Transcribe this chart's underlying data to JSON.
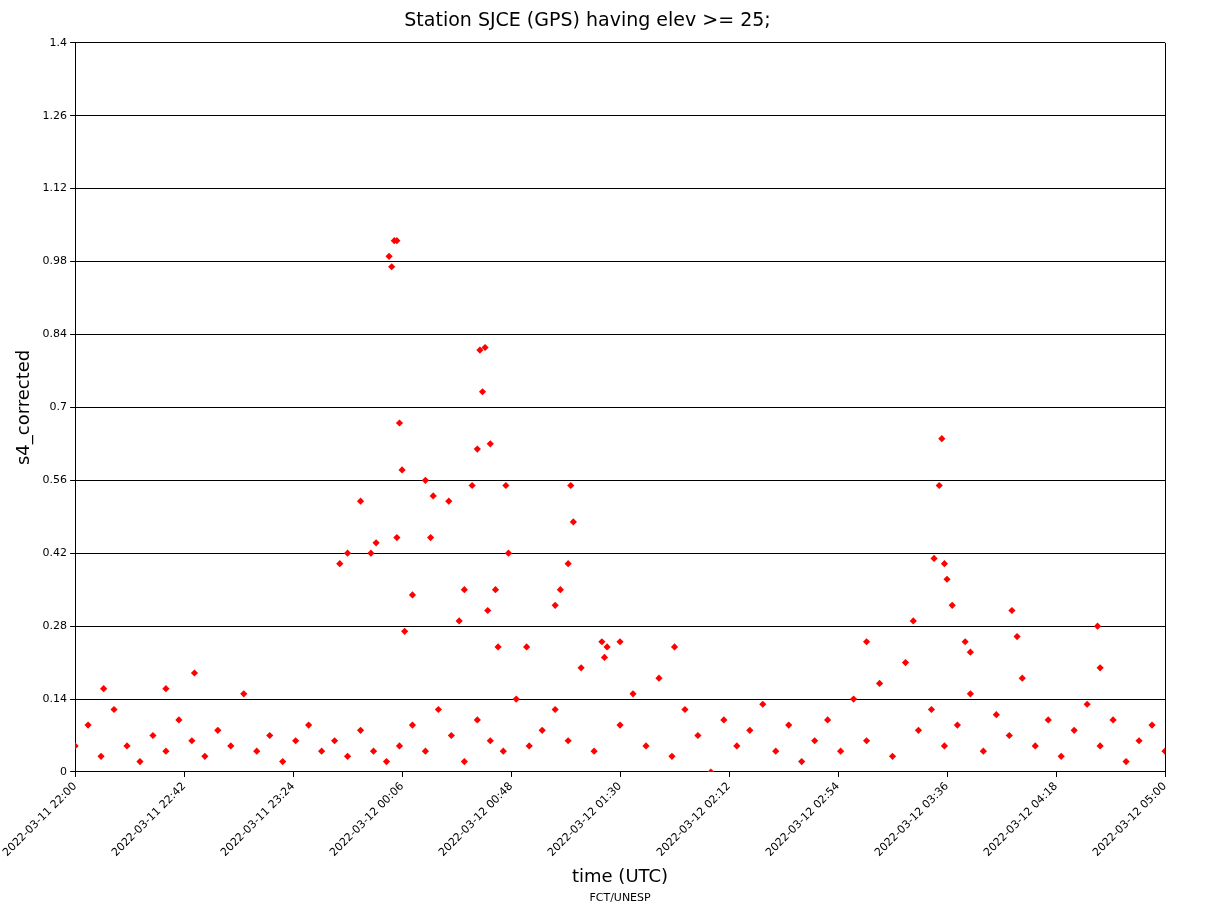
{
  "chart_data": {
    "type": "scatter",
    "title": "Station SJCE (GPS) having elev >= 25;",
    "xlabel": "time (UTC)",
    "ylabel": "s4_corrected",
    "annotations": [
      "FCT/UNESP"
    ],
    "xlim": [
      "2022-03-11T22:00",
      "2022-03-12T05:00"
    ],
    "xticks": [
      {
        "value": "2022-03-11T22:00",
        "label": "2022-03-11 22:00"
      },
      {
        "value": "2022-03-11T22:42",
        "label": "2022-03-11 22:42"
      },
      {
        "value": "2022-03-11T23:24",
        "label": "2022-03-11 23:24"
      },
      {
        "value": "2022-03-12T00:06",
        "label": "2022-03-12 00:06"
      },
      {
        "value": "2022-03-12T00:48",
        "label": "2022-03-12 00:48"
      },
      {
        "value": "2022-03-12T01:30",
        "label": "2022-03-12 01:30"
      },
      {
        "value": "2022-03-12T02:12",
        "label": "2022-03-12 02:12"
      },
      {
        "value": "2022-03-12T02:54",
        "label": "2022-03-12 02:54"
      },
      {
        "value": "2022-03-12T03:36",
        "label": "2022-03-12 03:36"
      },
      {
        "value": "2022-03-12T04:18",
        "label": "2022-03-12 04:18"
      },
      {
        "value": "2022-03-12T05:00",
        "label": "2022-03-12 05:00"
      }
    ],
    "ylim": [
      0,
      1.4
    ],
    "yticks": [
      0,
      0.14,
      0.28,
      0.42,
      0.56,
      0.7,
      0.84,
      0.98,
      1.12,
      1.26,
      1.4
    ],
    "grid": "y",
    "legend": false,
    "marker": "diamond",
    "series": [
      {
        "color": "#ff0000",
        "x": [
          "2022-03-11T22:00",
          "2022-03-11T22:05",
          "2022-03-11T22:10",
          "2022-03-11T22:15",
          "2022-03-11T22:20",
          "2022-03-11T22:25",
          "2022-03-11T22:30",
          "2022-03-11T22:35",
          "2022-03-11T22:40",
          "2022-03-11T22:45",
          "2022-03-11T22:50",
          "2022-03-11T22:55",
          "2022-03-11T23:00",
          "2022-03-11T23:05",
          "2022-03-11T23:10",
          "2022-03-11T23:15",
          "2022-03-11T23:20",
          "2022-03-11T23:25",
          "2022-03-11T23:30",
          "2022-03-11T23:35",
          "2022-03-11T23:40",
          "2022-03-11T23:45",
          "2022-03-11T23:50",
          "2022-03-11T23:55",
          "2022-03-12T00:00",
          "2022-03-12T00:05",
          "2022-03-12T00:10",
          "2022-03-12T00:15",
          "2022-03-12T00:20",
          "2022-03-12T00:25",
          "2022-03-12T00:30",
          "2022-03-12T00:35",
          "2022-03-12T00:40",
          "2022-03-12T00:45",
          "2022-03-12T00:50",
          "2022-03-12T00:55",
          "2022-03-12T01:00",
          "2022-03-12T01:05",
          "2022-03-12T01:10",
          "2022-03-12T01:15",
          "2022-03-12T01:20",
          "2022-03-12T01:25",
          "2022-03-12T01:30",
          "2022-03-12T01:35",
          "2022-03-12T01:40",
          "2022-03-12T01:45",
          "2022-03-12T01:50",
          "2022-03-12T01:55",
          "2022-03-12T02:00",
          "2022-03-12T02:05",
          "2022-03-12T02:10",
          "2022-03-12T02:15",
          "2022-03-12T02:20",
          "2022-03-12T02:25",
          "2022-03-12T02:30",
          "2022-03-12T02:35",
          "2022-03-12T02:40",
          "2022-03-12T02:45",
          "2022-03-12T02:50",
          "2022-03-12T02:55",
          "2022-03-12T03:00",
          "2022-03-12T03:05",
          "2022-03-12T03:10",
          "2022-03-12T03:15",
          "2022-03-12T03:20",
          "2022-03-12T03:25",
          "2022-03-12T03:30",
          "2022-03-12T03:35",
          "2022-03-12T03:40",
          "2022-03-12T03:45",
          "2022-03-12T03:50",
          "2022-03-12T03:55",
          "2022-03-12T04:00",
          "2022-03-12T04:05",
          "2022-03-12T04:10",
          "2022-03-12T04:15",
          "2022-03-12T04:20",
          "2022-03-12T04:25",
          "2022-03-12T04:30",
          "2022-03-12T04:35",
          "2022-03-12T04:40",
          "2022-03-12T04:45",
          "2022-03-12T04:50",
          "2022-03-12T04:55",
          "2022-03-12T05:00",
          "2022-03-11T23:42",
          "2022-03-11T23:45",
          "2022-03-11T23:50",
          "2022-03-11T23:54",
          "2022-03-11T23:56",
          "2022-03-12T00:01",
          "2022-03-12T00:02",
          "2022-03-12T00:03",
          "2022-03-12T00:04",
          "2022-03-12T00:04",
          "2022-03-12T00:05",
          "2022-03-12T00:06",
          "2022-03-12T00:07",
          "2022-03-12T00:10",
          "2022-03-12T00:15",
          "2022-03-12T00:17",
          "2022-03-12T00:18",
          "2022-03-12T00:24",
          "2022-03-12T00:28",
          "2022-03-12T00:30",
          "2022-03-12T00:33",
          "2022-03-12T00:35",
          "2022-03-12T00:36",
          "2022-03-12T00:37",
          "2022-03-12T00:38",
          "2022-03-12T00:39",
          "2022-03-12T00:40",
          "2022-03-12T00:42",
          "2022-03-12T00:43",
          "2022-03-12T00:46",
          "2022-03-12T00:47",
          "2022-03-12T00:54",
          "2022-03-12T01:05",
          "2022-03-12T01:07",
          "2022-03-12T01:10",
          "2022-03-12T01:11",
          "2022-03-12T01:12",
          "2022-03-12T01:23",
          "2022-03-12T01:24",
          "2022-03-12T01:30",
          "2022-03-12T01:51",
          "2022-03-12T03:05",
          "2022-03-12T03:23",
          "2022-03-12T03:31",
          "2022-03-12T03:33",
          "2022-03-12T03:34",
          "2022-03-12T03:35",
          "2022-03-12T03:36",
          "2022-03-12T03:38",
          "2022-03-12T03:43",
          "2022-03-12T03:45",
          "2022-03-12T04:01",
          "2022-03-12T04:03",
          "2022-03-12T04:34",
          "2022-03-12T04:35",
          "2022-03-11T22:11",
          "2022-03-11T22:35",
          "2022-03-11T22:46"
        ],
        "values": [
          0.05,
          0.09,
          0.03,
          0.12,
          0.05,
          0.02,
          0.07,
          0.04,
          0.1,
          0.06,
          0.03,
          0.08,
          0.05,
          0.15,
          0.04,
          0.07,
          0.02,
          0.06,
          0.09,
          0.04,
          0.06,
          0.03,
          0.08,
          0.04,
          0.02,
          0.05,
          0.09,
          0.04,
          0.12,
          0.07,
          0.02,
          0.1,
          0.06,
          0.04,
          0.14,
          0.05,
          0.08,
          0.12,
          0.06,
          0.2,
          0.04,
          0.24,
          0.09,
          0.15,
          0.05,
          0.18,
          0.03,
          0.12,
          0.07,
          0,
          0.1,
          0.05,
          0.08,
          0.13,
          0.04,
          0.09,
          0.02,
          0.06,
          0.1,
          0.04,
          0.14,
          0.06,
          0.17,
          0.03,
          0.21,
          0.08,
          0.12,
          0.05,
          0.09,
          0.15,
          0.04,
          0.11,
          0.07,
          0.18,
          0.05,
          0.1,
          0.03,
          0.08,
          0.13,
          0.05,
          0.1,
          0.02,
          0.06,
          0.09,
          0.04,
          0.4,
          0.42,
          0.52,
          0.42,
          0.44,
          0.99,
          0.97,
          1.02,
          1.02,
          0.45,
          0.67,
          0.58,
          0.27,
          0.34,
          0.56,
          0.45,
          0.53,
          0.52,
          0.29,
          0.35,
          0.55,
          0.62,
          0.81,
          0.73,
          0.815,
          0.31,
          0.63,
          0.35,
          0.24,
          0.55,
          0.42,
          0.24,
          0.32,
          0.35,
          0.4,
          0.55,
          0.48,
          0.25,
          0.22,
          0.25,
          0.24,
          0.25,
          0.29,
          0.41,
          0.55,
          0.64,
          0.4,
          0.37,
          0.32,
          0.25,
          0.23,
          0.31,
          0.26,
          0.28,
          0.2,
          0.16,
          0.16,
          0.19
        ]
      }
    ]
  }
}
